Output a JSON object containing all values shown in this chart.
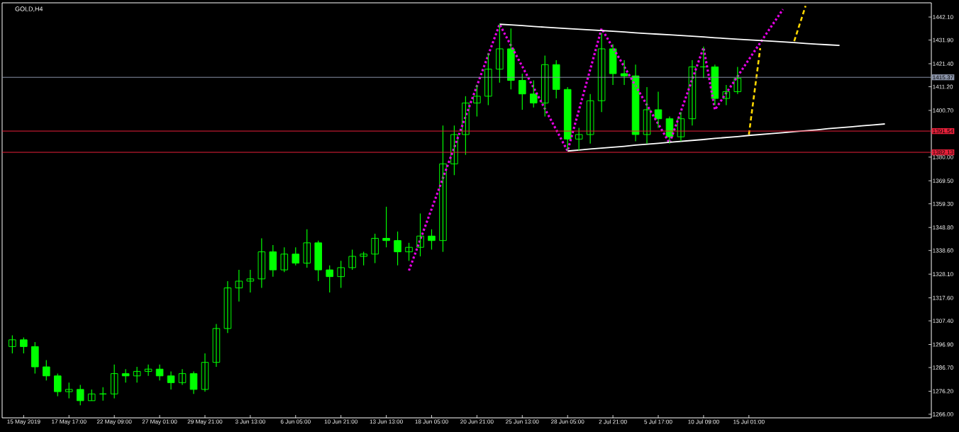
{
  "chart_data": {
    "type": "candlestick",
    "title": "GOLD,H4",
    "color": "#00ff00",
    "categories": [
      null,
      "15 May 2019",
      null,
      null,
      null,
      "17 May 17:00",
      null,
      null,
      null,
      "22 May 09:00",
      null,
      null,
      null,
      "27 May 01:00",
      null,
      null,
      null,
      "29 May 21:00",
      null,
      null,
      null,
      "3 Jun 13:00",
      null,
      null,
      null,
      "6 Jun 05:00",
      null,
      null,
      null,
      "10 Jun 21:00",
      null,
      null,
      null,
      "13 Jun 13:00",
      null,
      null,
      null,
      "18 Jun 05:00",
      null,
      null,
      null,
      "20 Jun 21:00",
      null,
      null,
      null,
      "25 Jun 13:00",
      null,
      null,
      null,
      "28 Jun 05:00",
      null,
      null,
      null,
      "2 Jul 21:00",
      null,
      null,
      null,
      "5 Jul 17:00",
      null,
      null,
      null,
      "10 Jul 09:00",
      null,
      null,
      null,
      "15 Jul 01:00",
      null,
      null,
      null,
      null,
      null,
      null,
      null,
      null,
      null,
      null,
      null,
      null,
      null
    ],
    "ohlc": [
      [
        1296,
        1301,
        1293,
        1299
      ],
      [
        1299,
        1300,
        1293,
        1296
      ],
      [
        1296,
        1298,
        1284,
        1287
      ],
      [
        1287,
        1290,
        1281,
        1283
      ],
      [
        1283,
        1284,
        1274,
        1276
      ],
      [
        1276,
        1280,
        1273,
        1277
      ],
      [
        1277,
        1279,
        1270,
        1272
      ],
      [
        1272,
        1277,
        1272,
        1275
      ],
      [
        1275,
        1278,
        1272,
        1275
      ],
      [
        1275,
        1288,
        1273,
        1284
      ],
      [
        1284,
        1286,
        1280,
        1283
      ],
      [
        1283,
        1287,
        1280,
        1285
      ],
      [
        1285,
        1288,
        1283,
        1286
      ],
      [
        1286,
        1288,
        1281,
        1283
      ],
      [
        1283,
        1285,
        1277,
        1280
      ],
      [
        1280,
        1286,
        1279,
        1284
      ],
      [
        1284,
        1285,
        1275,
        1277
      ],
      [
        1277,
        1293,
        1276,
        1289
      ],
      [
        1289,
        1306,
        1287,
        1304
      ],
      [
        1304,
        1325,
        1302,
        1322
      ],
      [
        1322,
        1330,
        1316,
        1325
      ],
      [
        1325,
        1330,
        1320,
        1326
      ],
      [
        1326,
        1344,
        1322,
        1338
      ],
      [
        1338,
        1341,
        1327,
        1330
      ],
      [
        1330,
        1340,
        1329,
        1337
      ],
      [
        1337,
        1340,
        1332,
        1333
      ],
      [
        1333,
        1348,
        1331,
        1342
      ],
      [
        1342,
        1343,
        1325,
        1330
      ],
      [
        1330,
        1332,
        1320,
        1327
      ],
      [
        1327,
        1334,
        1322,
        1331
      ],
      [
        1331,
        1339,
        1330,
        1336
      ],
      [
        1336,
        1338,
        1332,
        1337
      ],
      [
        1337,
        1346,
        1333,
        1344
      ],
      [
        1344,
        1358,
        1340,
        1343
      ],
      [
        1343,
        1347,
        1332,
        1338
      ],
      [
        1338,
        1342,
        1334,
        1340
      ],
      [
        1340,
        1355,
        1336,
        1345
      ],
      [
        1345,
        1348,
        1339,
        1343
      ],
      [
        1343,
        1394,
        1338,
        1377
      ],
      [
        1377,
        1394,
        1372,
        1390
      ],
      [
        1390,
        1407,
        1381,
        1404
      ],
      [
        1404,
        1412,
        1398,
        1407
      ],
      [
        1407,
        1426,
        1403,
        1419
      ],
      [
        1419,
        1439,
        1413,
        1428
      ],
      [
        1428,
        1437,
        1410,
        1414
      ],
      [
        1414,
        1417,
        1401,
        1408
      ],
      [
        1408,
        1414,
        1402,
        1404
      ],
      [
        1404,
        1425,
        1398,
        1421
      ],
      [
        1421,
        1423,
        1406,
        1410
      ],
      [
        1410,
        1411,
        1383,
        1388
      ],
      [
        1388,
        1393,
        1383,
        1390
      ],
      [
        1390,
        1408,
        1386,
        1405
      ],
      [
        1405,
        1435,
        1400,
        1428
      ],
      [
        1428,
        1430,
        1412,
        1417
      ],
      [
        1417,
        1423,
        1412,
        1416
      ],
      [
        1416,
        1421,
        1387,
        1390
      ],
      [
        1390,
        1411,
        1386,
        1401
      ],
      [
        1401,
        1409,
        1393,
        1397
      ],
      [
        1397,
        1398,
        1386,
        1389
      ],
      [
        1389,
        1400,
        1387,
        1397
      ],
      [
        1397,
        1423,
        1394,
        1420
      ],
      [
        1420,
        1429,
        1415,
        1420
      ],
      [
        1420,
        1421,
        1403,
        1406
      ],
      [
        1406,
        1412,
        1403,
        1409
      ],
      [
        1409,
        1420,
        1408,
        1415
      ],
      null,
      null,
      null,
      null,
      null,
      null,
      null,
      null,
      null,
      null,
      null,
      null,
      null,
      null
    ],
    "series": [
      {
        "type": "line",
        "color": "#e600e6",
        "line_style": "dotted",
        "values": [
          null,
          null,
          null,
          null,
          null,
          null,
          null,
          null,
          null,
          null,
          null,
          null,
          null,
          null,
          null,
          null,
          null,
          null,
          null,
          null,
          null,
          null,
          null,
          null,
          null,
          null,
          null,
          null,
          null,
          null,
          null,
          null,
          null,
          null,
          null,
          1329.7,
          1343.4,
          1357.0,
          1370.7,
          1384.3,
          1398.0,
          1411.6,
          1425.3,
          1438.9,
          1429.5,
          1420.2,
          1410.8,
          1401.4,
          1392.1,
          1382.7,
          1400.8,
          1418.9,
          1437.0,
          1428.5,
          1420.1,
          1411.6,
          1403.1,
          1394.7,
          1386.2,
          1400.3,
          1414.5,
          1428.6,
          1401.0,
          1408.4,
          1415.8,
          1423.3,
          1430.7,
          1438.1,
          1445.5,
          null,
          null,
          null,
          null,
          null,
          null,
          null,
          null,
          null,
          null
        ]
      },
      {
        "type": "line",
        "color": "#ffffff",
        "line_style": "solid",
        "values": [
          null,
          null,
          null,
          null,
          null,
          null,
          null,
          null,
          null,
          null,
          null,
          null,
          null,
          null,
          null,
          null,
          null,
          null,
          null,
          null,
          null,
          null,
          null,
          null,
          null,
          null,
          null,
          null,
          null,
          null,
          null,
          null,
          null,
          null,
          null,
          null,
          null,
          null,
          null,
          null,
          null,
          null,
          null,
          1438.9,
          1438.6,
          1438.3,
          1437.9,
          1437.6,
          1437.3,
          1437.0,
          1436.7,
          1436.4,
          1436.1,
          1435.8,
          1435.5,
          1435.1,
          1434.8,
          1434.5,
          1434.2,
          1433.9,
          1433.6,
          1433.3,
          1432.9,
          1432.6,
          1432.3,
          1432.0,
          1431.7,
          1431.4,
          1431.1,
          1430.8,
          1430.4,
          1430.1,
          1429.8,
          1429.5,
          null,
          null,
          null,
          null,
          null
        ]
      },
      {
        "type": "line",
        "color": "#ffffff",
        "line_style": "solid",
        "values": [
          null,
          null,
          null,
          null,
          null,
          null,
          null,
          null,
          null,
          null,
          null,
          null,
          null,
          null,
          null,
          null,
          null,
          null,
          null,
          null,
          null,
          null,
          null,
          null,
          null,
          null,
          null,
          null,
          null,
          null,
          null,
          null,
          null,
          null,
          null,
          null,
          null,
          null,
          null,
          null,
          null,
          null,
          null,
          null,
          null,
          null,
          null,
          null,
          null,
          1382.7,
          1383.1,
          1383.6,
          1384.0,
          1384.4,
          1384.8,
          1385.3,
          1385.7,
          1386.1,
          1386.6,
          1387.0,
          1387.4,
          1387.8,
          1388.3,
          1388.7,
          1389.1,
          1389.6,
          1390.0,
          1390.4,
          1390.8,
          1391.3,
          1391.7,
          1392.1,
          1392.6,
          1393.0,
          1393.4,
          1393.9,
          1394.3,
          1394.7,
          null
        ]
      },
      {
        "type": "line",
        "color": "#ffd700",
        "line_style": "dashed",
        "values": [
          null,
          null,
          null,
          null,
          null,
          null,
          null,
          null,
          null,
          null,
          null,
          null,
          null,
          null,
          null,
          null,
          null,
          null,
          null,
          null,
          null,
          null,
          null,
          null,
          null,
          null,
          null,
          null,
          null,
          null,
          null,
          null,
          null,
          null,
          null,
          null,
          null,
          null,
          null,
          null,
          null,
          null,
          null,
          null,
          null,
          null,
          null,
          null,
          null,
          null,
          null,
          null,
          null,
          null,
          null,
          null,
          null,
          null,
          null,
          null,
          null,
          null,
          null,
          null,
          null,
          1390.0,
          1428.3,
          null,
          null,
          null,
          null,
          null,
          null,
          null,
          null,
          null,
          null,
          null,
          null
        ]
      },
      {
        "type": "line",
        "color": "#ffd700",
        "line_style": "dashed",
        "values": [
          null,
          null,
          null,
          null,
          null,
          null,
          null,
          null,
          null,
          null,
          null,
          null,
          null,
          null,
          null,
          null,
          null,
          null,
          null,
          null,
          null,
          null,
          null,
          null,
          null,
          null,
          null,
          null,
          null,
          null,
          null,
          null,
          null,
          null,
          null,
          null,
          null,
          null,
          null,
          null,
          null,
          null,
          null,
          null,
          null,
          null,
          null,
          null,
          null,
          null,
          null,
          null,
          null,
          null,
          null,
          null,
          null,
          null,
          null,
          null,
          null,
          null,
          null,
          null,
          null,
          null,
          null,
          null,
          null,
          1431.4,
          1447.0,
          null,
          null,
          null,
          null,
          null,
          null,
          null,
          null
        ]
      }
    ],
    "ref_lines": [
      {
        "axis": "y",
        "value": 1415.37,
        "label": "1415.37",
        "color": "#8a93a8"
      },
      {
        "axis": "y",
        "value": 1391.54,
        "label": "1391.54",
        "color": "#e8203a"
      },
      {
        "axis": "y",
        "value": 1382.13,
        "label": "1382.13",
        "color": "#e8203a"
      }
    ],
    "ylim": [
      1264.4,
      1448.4
    ],
    "yticks": [
      {
        "value": 1266.0,
        "label": "1266.00"
      },
      {
        "value": 1276.2,
        "label": "1276.20"
      },
      {
        "value": 1286.7,
        "label": "1286.70"
      },
      {
        "value": 1296.9,
        "label": "1296.90"
      },
      {
        "value": 1307.4,
        "label": "1307.40"
      },
      {
        "value": 1317.6,
        "label": "1317.60"
      },
      {
        "value": 1328.1,
        "label": "1328.10"
      },
      {
        "value": 1338.6,
        "label": "1338.60"
      },
      {
        "value": 1348.8,
        "label": "1348.80"
      },
      {
        "value": 1359.3,
        "label": "1359.30"
      },
      {
        "value": 1369.5,
        "label": "1369.50"
      },
      {
        "value": 1380.0,
        "label": "1380.00"
      },
      {
        "value": 1400.7,
        "label": "1400.70"
      },
      {
        "value": 1411.2,
        "label": "1411.20"
      },
      {
        "value": 1421.4,
        "label": "1421.40"
      },
      {
        "value": 1431.9,
        "label": "1431.90"
      },
      {
        "value": 1442.1,
        "label": "1442.10"
      }
    ]
  }
}
